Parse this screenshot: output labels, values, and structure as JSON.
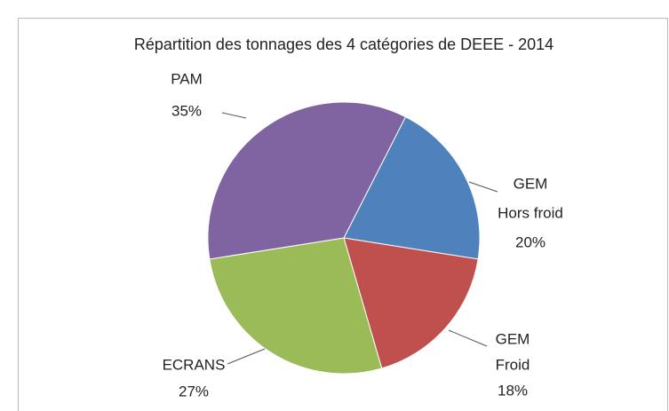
{
  "chart_data": {
    "type": "pie",
    "title": "Répartition des tonnages des 4 catégories de DEEE - 2014",
    "categories": [
      [
        "GEM",
        "Hors froid"
      ],
      [
        "GEM",
        "Froid"
      ],
      [
        "ECRANS"
      ],
      [
        "PAM"
      ]
    ],
    "values": [
      20,
      18,
      27,
      35
    ],
    "value_labels": [
      "20%",
      "18%",
      "27%",
      "35%"
    ],
    "colors": [
      "#4f81bd",
      "#c0504d",
      "#9bbb59",
      "#8064a2"
    ]
  }
}
